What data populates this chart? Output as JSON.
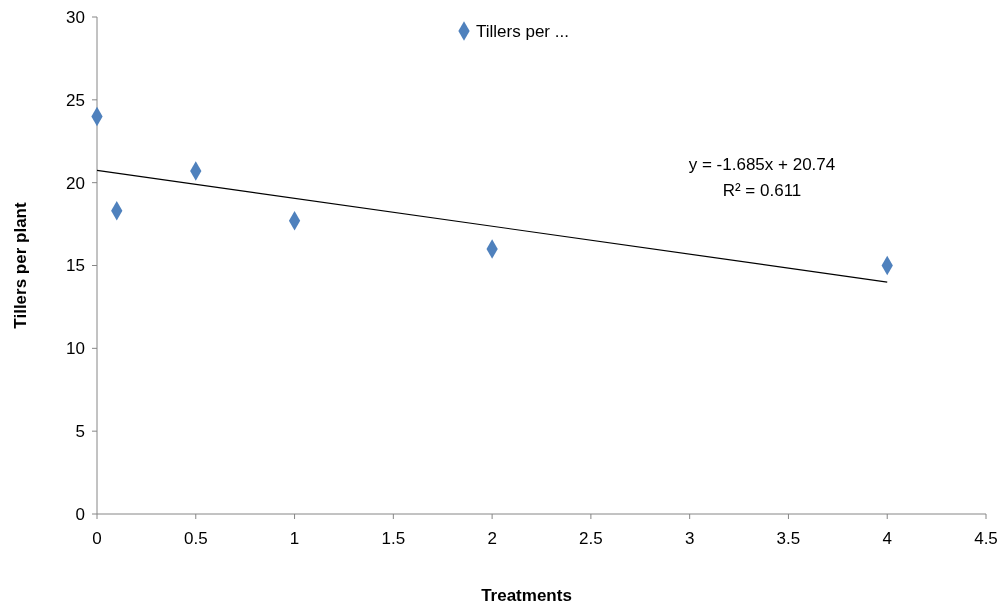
{
  "chart_data": {
    "type": "scatter",
    "xlabel": "Treatments",
    "ylabel": "Tillers per plant",
    "xlim": [
      0,
      4.5
    ],
    "xticks": [
      0,
      0.5,
      1,
      1.5,
      2,
      2.5,
      3,
      3.5,
      4,
      4.5
    ],
    "ylim": [
      0,
      30
    ],
    "yticks": [
      0,
      5,
      10,
      15,
      20,
      25,
      30
    ],
    "grid": false,
    "legend": "top",
    "marker": "diamond",
    "annotations": [
      "y = -1.685x + 20.74",
      "R² = 0.611"
    ],
    "series": [
      {
        "name": "Tillers per ...",
        "type": "scatter",
        "color": "#4f81bd",
        "x": [
          0,
          0.1,
          0.5,
          1,
          2,
          4
        ],
        "values": [
          24,
          18.3,
          20.7,
          17.7,
          16.0,
          15.0
        ]
      },
      {
        "type": "line",
        "color": "#000000",
        "x": [
          0,
          4
        ],
        "values": [
          20.74,
          14.0
        ],
        "marker": "none",
        "line_style": "solid"
      }
    ]
  }
}
